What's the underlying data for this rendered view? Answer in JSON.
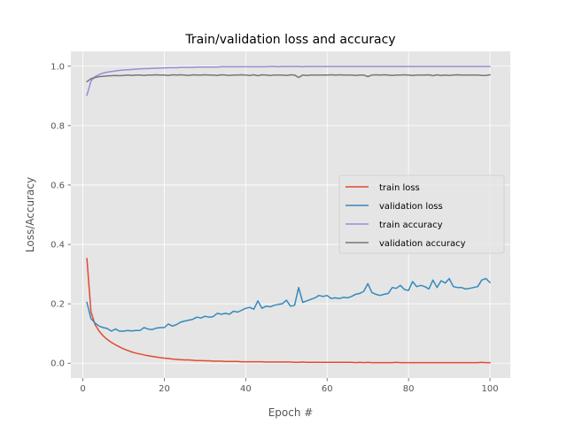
{
  "chart_data": {
    "type": "line",
    "title": "Train/validation loss and accuracy",
    "xlabel": "Epoch #",
    "ylabel": "Loss/Accuracy",
    "xlim": [
      -2.95,
      105
    ],
    "ylim": [
      -0.05,
      1.05
    ],
    "xticks": [
      0,
      20,
      40,
      60,
      80,
      100
    ],
    "yticks": [
      0.0,
      0.2,
      0.4,
      0.6,
      0.8,
      1.0
    ],
    "xtick_labels": [
      "0",
      "20",
      "40",
      "60",
      "80",
      "100"
    ],
    "ytick_labels": [
      "0.0",
      "0.2",
      "0.4",
      "0.6",
      "0.8",
      "1.0"
    ],
    "grid": true,
    "legend_position": "center-right",
    "background": "#e5e5e5",
    "x": [
      1,
      2,
      3,
      4,
      5,
      6,
      7,
      8,
      9,
      10,
      11,
      12,
      13,
      14,
      15,
      16,
      17,
      18,
      19,
      20,
      21,
      22,
      23,
      24,
      25,
      26,
      27,
      28,
      29,
      30,
      31,
      32,
      33,
      34,
      35,
      36,
      37,
      38,
      39,
      40,
      41,
      42,
      43,
      44,
      45,
      46,
      47,
      48,
      49,
      50,
      51,
      52,
      53,
      54,
      55,
      56,
      57,
      58,
      59,
      60,
      61,
      62,
      63,
      64,
      65,
      66,
      67,
      68,
      69,
      70,
      71,
      72,
      73,
      74,
      75,
      76,
      77,
      78,
      79,
      80,
      81,
      82,
      83,
      84,
      85,
      86,
      87,
      88,
      89,
      90,
      91,
      92,
      93,
      94,
      95,
      96,
      97,
      98,
      99,
      100
    ],
    "series": [
      {
        "name": "train loss",
        "color": "#e24a33",
        "values": [
          0.352,
          0.173,
          0.13,
          0.108,
          0.092,
          0.08,
          0.07,
          0.062,
          0.055,
          0.048,
          0.043,
          0.038,
          0.034,
          0.031,
          0.028,
          0.025,
          0.023,
          0.021,
          0.019,
          0.017,
          0.016,
          0.014,
          0.013,
          0.012,
          0.011,
          0.011,
          0.01,
          0.009,
          0.009,
          0.008,
          0.008,
          0.007,
          0.007,
          0.007,
          0.006,
          0.006,
          0.006,
          0.006,
          0.005,
          0.005,
          0.005,
          0.005,
          0.005,
          0.005,
          0.004,
          0.004,
          0.004,
          0.004,
          0.004,
          0.004,
          0.004,
          0.003,
          0.003,
          0.004,
          0.003,
          0.003,
          0.003,
          0.003,
          0.003,
          0.003,
          0.003,
          0.003,
          0.003,
          0.003,
          0.003,
          0.003,
          0.002,
          0.003,
          0.002,
          0.003,
          0.002,
          0.002,
          0.002,
          0.002,
          0.002,
          0.002,
          0.003,
          0.002,
          0.002,
          0.002,
          0.002,
          0.002,
          0.002,
          0.002,
          0.002,
          0.002,
          0.002,
          0.002,
          0.002,
          0.002,
          0.002,
          0.002,
          0.002,
          0.002,
          0.002,
          0.002,
          0.002,
          0.003,
          0.002,
          0.002
        ]
      },
      {
        "name": "validation loss",
        "color": "#348abd",
        "values": [
          0.205,
          0.15,
          0.135,
          0.125,
          0.12,
          0.117,
          0.108,
          0.115,
          0.108,
          0.108,
          0.11,
          0.109,
          0.11,
          0.11,
          0.12,
          0.115,
          0.113,
          0.118,
          0.12,
          0.12,
          0.132,
          0.125,
          0.13,
          0.138,
          0.142,
          0.145,
          0.148,
          0.155,
          0.152,
          0.158,
          0.155,
          0.157,
          0.168,
          0.165,
          0.168,
          0.165,
          0.175,
          0.172,
          0.178,
          0.185,
          0.188,
          0.182,
          0.21,
          0.185,
          0.192,
          0.19,
          0.195,
          0.198,
          0.2,
          0.212,
          0.192,
          0.195,
          0.255,
          0.205,
          0.21,
          0.215,
          0.22,
          0.228,
          0.225,
          0.228,
          0.218,
          0.22,
          0.218,
          0.222,
          0.22,
          0.225,
          0.232,
          0.235,
          0.242,
          0.268,
          0.238,
          0.232,
          0.228,
          0.232,
          0.235,
          0.255,
          0.252,
          0.262,
          0.248,
          0.245,
          0.275,
          0.258,
          0.262,
          0.258,
          0.25,
          0.28,
          0.255,
          0.278,
          0.27,
          0.285,
          0.258,
          0.255,
          0.255,
          0.25,
          0.252,
          0.255,
          0.258,
          0.28,
          0.285,
          0.272
        ]
      },
      {
        "name": "train accuracy",
        "color": "#988ed5",
        "values": [
          0.902,
          0.95,
          0.965,
          0.972,
          0.977,
          0.98,
          0.982,
          0.984,
          0.986,
          0.987,
          0.988,
          0.989,
          0.99,
          0.991,
          0.992,
          0.992,
          0.993,
          0.993,
          0.994,
          0.994,
          0.995,
          0.995,
          0.995,
          0.996,
          0.996,
          0.996,
          0.996,
          0.997,
          0.997,
          0.997,
          0.997,
          0.997,
          0.997,
          0.998,
          0.998,
          0.998,
          0.998,
          0.998,
          0.998,
          0.998,
          0.998,
          0.998,
          0.998,
          0.998,
          0.998,
          0.999,
          0.999,
          0.998,
          0.999,
          0.999,
          0.999,
          0.999,
          0.999,
          0.998,
          0.999,
          0.999,
          0.999,
          0.999,
          0.999,
          0.999,
          0.999,
          0.999,
          0.999,
          0.999,
          0.999,
          0.999,
          0.999,
          0.999,
          0.999,
          0.999,
          0.999,
          0.999,
          0.999,
          0.999,
          0.999,
          0.999,
          0.999,
          0.999,
          0.999,
          0.999,
          0.999,
          0.999,
          0.999,
          0.999,
          0.999,
          0.999,
          0.999,
          0.999,
          0.999,
          0.999,
          0.999,
          0.999,
          0.999,
          0.999,
          0.999,
          0.999,
          0.999,
          0.999,
          0.999,
          0.999
        ]
      },
      {
        "name": "validation accuracy",
        "color": "#777777",
        "values": [
          0.948,
          0.958,
          0.962,
          0.965,
          0.966,
          0.967,
          0.968,
          0.969,
          0.968,
          0.969,
          0.97,
          0.969,
          0.97,
          0.97,
          0.969,
          0.97,
          0.97,
          0.971,
          0.97,
          0.97,
          0.969,
          0.971,
          0.97,
          0.971,
          0.97,
          0.969,
          0.971,
          0.97,
          0.97,
          0.971,
          0.97,
          0.97,
          0.969,
          0.971,
          0.97,
          0.969,
          0.97,
          0.97,
          0.971,
          0.97,
          0.969,
          0.971,
          0.968,
          0.971,
          0.97,
          0.969,
          0.97,
          0.97,
          0.97,
          0.969,
          0.971,
          0.97,
          0.962,
          0.97,
          0.969,
          0.97,
          0.97,
          0.97,
          0.97,
          0.97,
          0.971,
          0.97,
          0.971,
          0.97,
          0.97,
          0.97,
          0.969,
          0.97,
          0.97,
          0.965,
          0.97,
          0.971,
          0.97,
          0.971,
          0.97,
          0.969,
          0.97,
          0.97,
          0.971,
          0.97,
          0.969,
          0.97,
          0.97,
          0.97,
          0.971,
          0.968,
          0.971,
          0.969,
          0.97,
          0.969,
          0.97,
          0.971,
          0.97,
          0.97,
          0.97,
          0.97,
          0.97,
          0.969,
          0.969,
          0.971
        ]
      }
    ]
  }
}
